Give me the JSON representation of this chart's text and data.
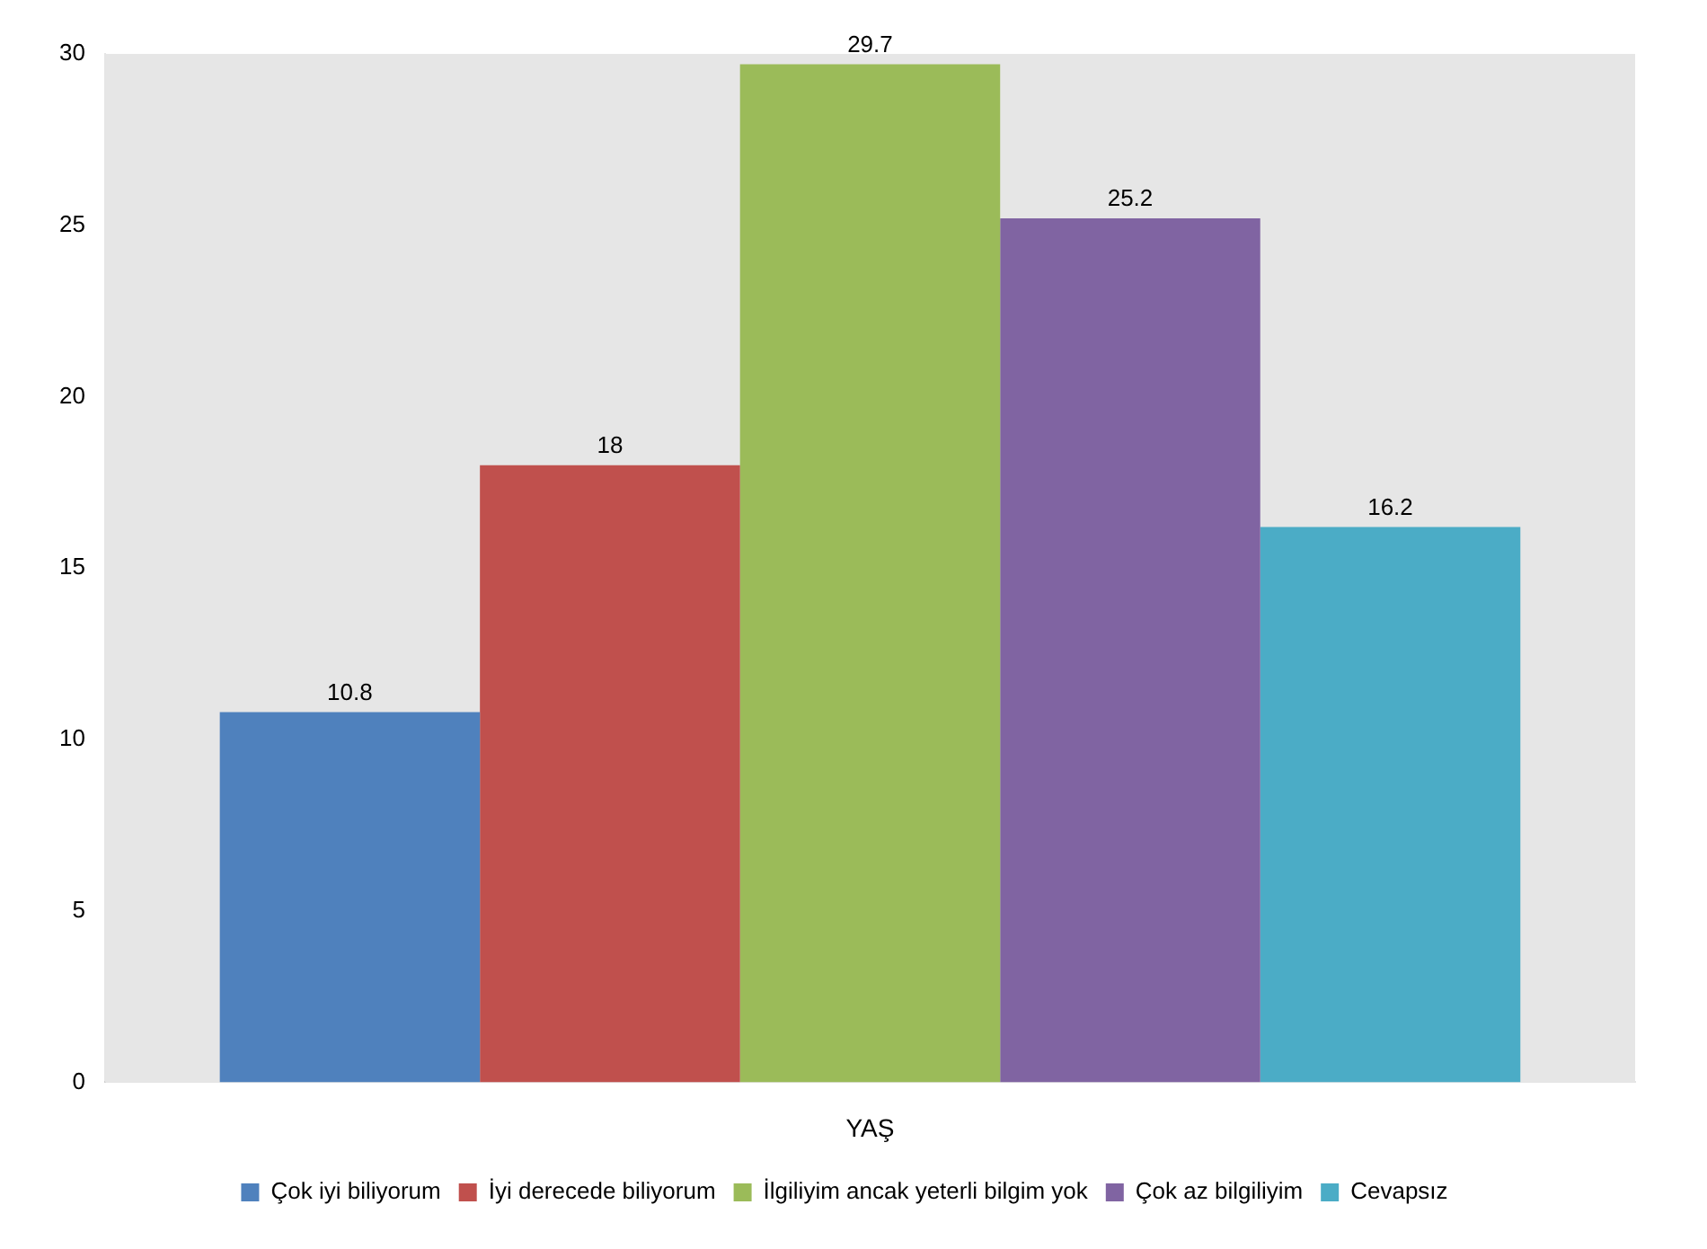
{
  "chart_data": {
    "type": "bar",
    "categories": [
      "YAŞ"
    ],
    "series": [
      {
        "name": "Çok iyi biliyorum",
        "color": "#4f81bd",
        "values": [
          10.8
        ]
      },
      {
        "name": "İyi derecede biliyorum",
        "color": "#c0504d",
        "values": [
          18
        ]
      },
      {
        "name": "İlgiliyim ancak yeterli bilgim yok",
        "color": "#9bbb59",
        "values": [
          29.7
        ]
      },
      {
        "name": "Çok az bilgiliyim",
        "color": "#8064a2",
        "values": [
          25.2
        ]
      },
      {
        "name": "Cevapsız",
        "color": "#4bacc6",
        "values": [
          16.2
        ]
      }
    ],
    "ylim": [
      0,
      30
    ],
    "yticks": [
      0,
      5,
      10,
      15,
      20,
      25,
      30
    ],
    "grid": false,
    "legend": "bottom",
    "data_labels": true
  }
}
